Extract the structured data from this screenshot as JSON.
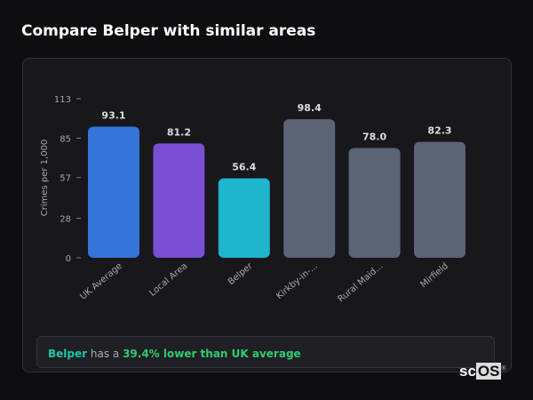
{
  "title": "Compare Belper with similar areas",
  "chart_data": {
    "type": "bar",
    "ylabel": "Crimes per 1,000",
    "ylim": [
      0,
      113
    ],
    "yticks": [
      0,
      28,
      57,
      85,
      113
    ],
    "categories": [
      "UK Average",
      "Local Area",
      "Belper",
      "Kirkby-in-...",
      "Rural Maid...",
      "Mirfield"
    ],
    "values": [
      93.1,
      81.2,
      56.4,
      98.4,
      78.0,
      82.3
    ],
    "value_labels": [
      "93.1",
      "81.2",
      "56.4",
      "98.4",
      "78.0",
      "82.3"
    ],
    "colors": [
      "#3574d8",
      "#7b4fd4",
      "#1fb5cc",
      "#5b6475",
      "#5b6475",
      "#5b6475"
    ]
  },
  "summary": {
    "area": "Belper",
    "middle": " has a ",
    "comparison": "39.4% lower than UK average"
  },
  "logo": {
    "text_a": "sc",
    "text_b": "OS",
    "mark": "®"
  }
}
